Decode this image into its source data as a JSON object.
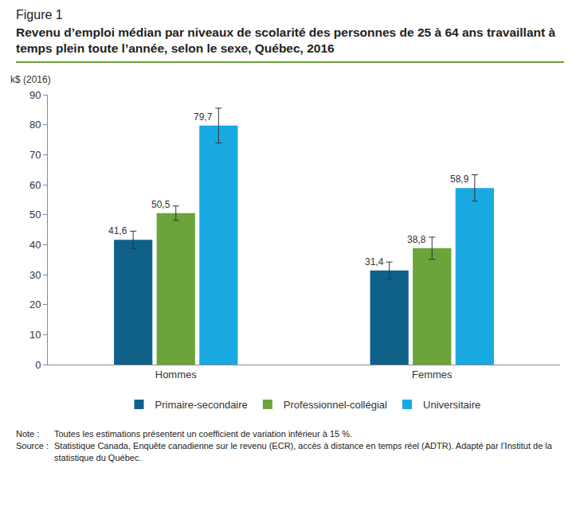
{
  "chart_data": {
    "type": "bar",
    "figure_label": "Figure 1",
    "title": "Revenu d’emploi médian par niveaux de scolarité des personnes de 25 à 64 ans travaillant à temps plein toute l’année, selon le sexe, Québec, 2016",
    "ylabel": "k$ (2016)",
    "categories": [
      "Hommes",
      "Femmes"
    ],
    "series": [
      {
        "name": "Primaire-secondaire",
        "color": "#0e6289",
        "values": [
          41.6,
          31.4
        ],
        "value_labels": [
          "41,6",
          "31,4"
        ],
        "errors": [
          2.9,
          2.8
        ]
      },
      {
        "name": "Professionnel-collégial",
        "color": "#6aa43a",
        "values": [
          50.5,
          38.8
        ],
        "value_labels": [
          "50,5",
          "38,8"
        ],
        "errors": [
          2.4,
          3.7
        ]
      },
      {
        "name": "Universitaire",
        "color": "#19a9e1",
        "values": [
          79.7,
          58.9
        ],
        "value_labels": [
          "79,7",
          "58,9"
        ],
        "errors": [
          5.8,
          4.4
        ]
      }
    ],
    "ylim": [
      0,
      90
    ],
    "yticks": [
      0,
      10,
      20,
      30,
      40,
      50,
      60,
      70,
      80,
      90
    ],
    "grid": false,
    "legend": "bottom",
    "data_labels": true,
    "note": {
      "label": "Note :",
      "text": "Toutes les estimations présentent un coefficient de variation inférieur à 15 %."
    },
    "source": {
      "label": "Source :",
      "text": "Statistique Canada, Enquête canadienne sur le revenu (ECR), accès à distance en temps réel (ADTR). Adapté par l’Institut de la statistique du Québec."
    }
  }
}
